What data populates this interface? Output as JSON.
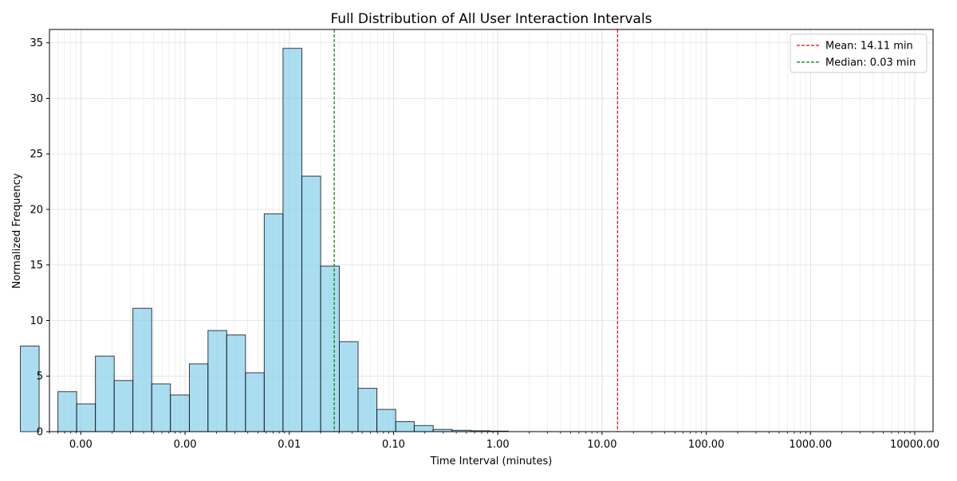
{
  "chart_data": {
    "type": "bar",
    "title": "Full Distribution of All User Interaction Intervals",
    "xlabel": "Time Interval (minutes)",
    "ylabel": "Normalized Frequency",
    "x_scale": "log",
    "xlim": [
      5e-05,
      15000
    ],
    "ylim": [
      0,
      36.2
    ],
    "x_ticks": [
      {
        "value": 0.0001,
        "label": "0.00"
      },
      {
        "value": 0.001,
        "label": "0.00"
      },
      {
        "value": 0.01,
        "label": "0.01"
      },
      {
        "value": 0.1,
        "label": "0.10"
      },
      {
        "value": 1,
        "label": "1.00"
      },
      {
        "value": 10,
        "label": "10.00"
      },
      {
        "value": 100,
        "label": "100.00"
      },
      {
        "value": 1000,
        "label": "1000.00"
      },
      {
        "value": 10000,
        "label": "10000.00"
      }
    ],
    "y_ticks": [
      0,
      5,
      10,
      15,
      20,
      25,
      30,
      35
    ],
    "grid": true,
    "bar_color": "#87CEEB",
    "bar_edge_color": "#000000",
    "bin_edges": [
      2.63e-05,
      3.98e-05,
      6.03e-05,
      9.12e-05,
      0.000138,
      0.000209,
      0.000316,
      0.000479,
      0.000724,
      0.0011,
      0.00166,
      0.00251,
      0.0038,
      0.00575,
      0.0087,
      0.0132,
      0.02,
      0.0302,
      0.0457,
      0.0692,
      0.105,
      0.158,
      0.24,
      0.363,
      0.55,
      0.832,
      1.26
    ],
    "values": [
      7.7,
      0,
      3.6,
      2.5,
      6.8,
      4.6,
      11.1,
      4.3,
      3.3,
      6.1,
      9.1,
      8.7,
      5.3,
      19.6,
      34.5,
      23.0,
      14.9,
      8.1,
      3.9,
      2.0,
      0.9,
      0.55,
      0.2,
      0.12,
      0.08,
      0.05
    ],
    "lines": [
      {
        "name": "Mean: 14.11 min",
        "x": 14.11,
        "color": "#ff0000",
        "style": "dashed"
      },
      {
        "name": "Median: 0.03 min",
        "x": 0.027,
        "color": "#008000",
        "style": "dashed"
      }
    ],
    "legend_position": "top-right"
  }
}
